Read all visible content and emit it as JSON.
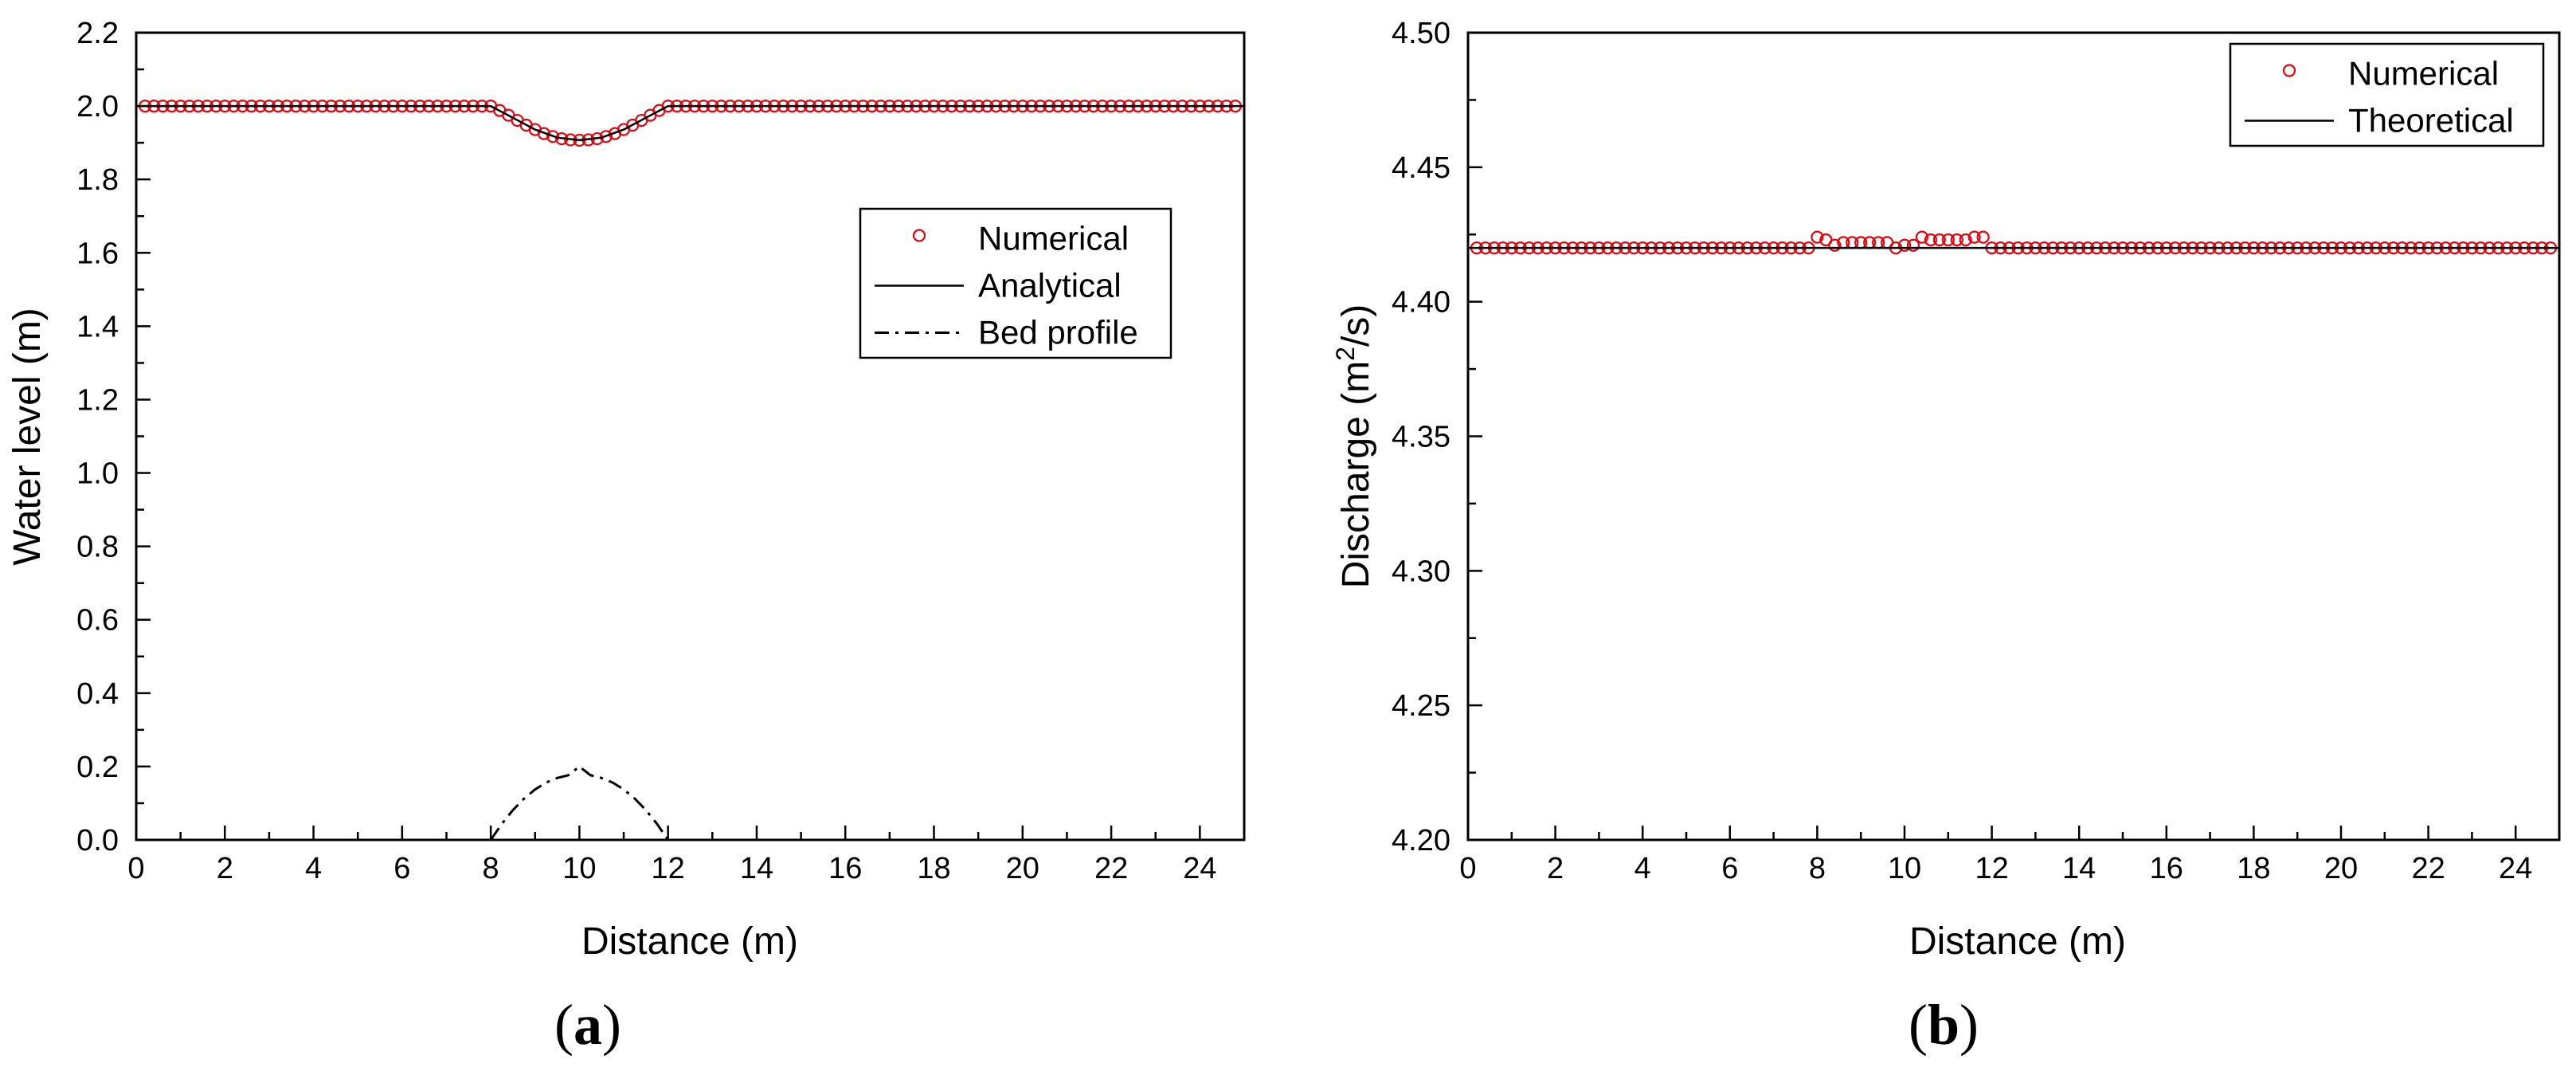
{
  "chart_data": [
    {
      "panel": "(a)",
      "panel_letter": "a",
      "type": "line",
      "xlabel": "Distance (m)",
      "ylabel": "Water level (m)",
      "xlim": [
        0,
        25
      ],
      "ylim": [
        0,
        2.2
      ],
      "xticks": [
        0,
        2,
        4,
        6,
        8,
        10,
        12,
        14,
        16,
        18,
        20,
        22,
        24
      ],
      "yticks": [
        0.0,
        0.2,
        0.4,
        0.6,
        0.8,
        1.0,
        1.2,
        1.4,
        1.6,
        1.8,
        2.0,
        2.2
      ],
      "ytick_labels": [
        "0.0",
        "0.2",
        "0.4",
        "0.6",
        "0.8",
        "1.0",
        "1.2",
        "1.4",
        "1.6",
        "1.8",
        "2.0",
        "2.2"
      ],
      "legend": {
        "position": "right",
        "entries": [
          "Numerical",
          "Analytical",
          "Bed profile"
        ]
      },
      "series": [
        {
          "name": "Numerical",
          "style": "red-circle-markers",
          "x": [
            0.2,
            0.4,
            0.6,
            0.8,
            1.0,
            1.2,
            1.4,
            1.6,
            1.8,
            2.0,
            2.2,
            2.4,
            2.6,
            2.8,
            3.0,
            3.2,
            3.4,
            3.6,
            3.8,
            4.0,
            4.2,
            4.4,
            4.6,
            4.8,
            5.0,
            5.2,
            5.4,
            5.6,
            5.8,
            6.0,
            6.2,
            6.4,
            6.6,
            6.8,
            7.0,
            7.2,
            7.4,
            7.6,
            7.8,
            8.0,
            8.2,
            8.4,
            8.6,
            8.8,
            9.0,
            9.2,
            9.4,
            9.6,
            9.8,
            10.0,
            10.2,
            10.4,
            10.6,
            10.8,
            11.0,
            11.2,
            11.4,
            11.6,
            11.8,
            12.0,
            12.2,
            12.4,
            12.6,
            12.8,
            13.0,
            13.2,
            13.4,
            13.6,
            13.8,
            14.0,
            14.2,
            14.4,
            14.6,
            14.8,
            15.0,
            15.2,
            15.4,
            15.6,
            15.8,
            16.0,
            16.2,
            16.4,
            16.6,
            16.8,
            17.0,
            17.2,
            17.4,
            17.6,
            17.8,
            18.0,
            18.2,
            18.4,
            18.6,
            18.8,
            19.0,
            19.2,
            19.4,
            19.6,
            19.8,
            20.0,
            20.2,
            20.4,
            20.6,
            20.8,
            21.0,
            21.2,
            21.4,
            21.6,
            21.8,
            22.0,
            22.2,
            22.4,
            22.6,
            22.8,
            23.0,
            23.2,
            23.4,
            23.6,
            23.8,
            24.0,
            24.2,
            24.4,
            24.6,
            24.8
          ],
          "y": [
            2.0,
            2.0,
            2.0,
            2.0,
            2.0,
            2.0,
            2.0,
            2.0,
            2.0,
            2.0,
            2.0,
            2.0,
            2.0,
            2.0,
            2.0,
            2.0,
            2.0,
            2.0,
            2.0,
            2.0,
            2.0,
            2.0,
            2.0,
            2.0,
            2.0,
            2.0,
            2.0,
            2.0,
            2.0,
            2.0,
            2.0,
            2.0,
            2.0,
            2.0,
            2.0,
            2.0,
            2.0,
            2.0,
            2.0,
            2.0,
            1.988,
            1.975,
            1.961,
            1.948,
            1.936,
            1.925,
            1.917,
            1.911,
            1.908,
            1.907,
            1.908,
            1.911,
            1.917,
            1.925,
            1.936,
            1.948,
            1.961,
            1.975,
            1.988,
            2.0,
            2.0,
            2.0,
            2.0,
            2.0,
            2.0,
            2.0,
            2.0,
            2.0,
            2.0,
            2.0,
            2.0,
            2.0,
            2.0,
            2.0,
            2.0,
            2.0,
            2.0,
            2.0,
            2.0,
            2.0,
            2.0,
            2.0,
            2.0,
            2.0,
            2.0,
            2.0,
            2.0,
            2.0,
            2.0,
            2.0,
            2.0,
            2.0,
            2.0,
            2.0,
            2.0,
            2.0,
            2.0,
            2.0,
            2.0,
            2.0,
            2.0,
            2.0,
            2.0,
            2.0,
            2.0,
            2.0,
            2.0,
            2.0,
            2.0,
            2.0,
            2.0,
            2.0,
            2.0,
            2.0,
            2.0,
            2.0,
            2.0,
            2.0,
            2.0,
            2.0,
            2.0,
            2.0,
            2.0,
            2.0
          ]
        },
        {
          "name": "Analytical",
          "style": "solid-black",
          "x": [
            0,
            8.0,
            8.5,
            9.0,
            9.5,
            10.0,
            10.5,
            11.0,
            11.5,
            12.0,
            25
          ],
          "y": [
            2.0,
            2.0,
            1.968,
            1.936,
            1.914,
            1.907,
            1.914,
            1.936,
            1.968,
            2.0,
            2.0
          ]
        },
        {
          "name": "Bed profile",
          "style": "dash-dot-black",
          "x": [
            8.0,
            8.25,
            8.5,
            8.75,
            9.0,
            9.25,
            9.5,
            9.75,
            10.0,
            10.25,
            10.5,
            10.75,
            11.0,
            11.25,
            11.5,
            11.75,
            12.0
          ],
          "y": [
            0.0,
            0.0438,
            0.0813,
            0.1125,
            0.1375,
            0.1563,
            0.1688,
            0.1763,
            0.2,
            0.1763,
            0.1688,
            0.1563,
            0.1375,
            0.1125,
            0.0813,
            0.0438,
            0.0
          ]
        }
      ]
    },
    {
      "panel": "(b)",
      "panel_letter": "b",
      "type": "line",
      "xlabel": "Distance (m)",
      "ylabel_prefix": "Discharge (m",
      "ylabel_sup": "2",
      "ylabel_suffix": "/s)",
      "xlim": [
        0,
        25
      ],
      "ylim": [
        4.2,
        4.5
      ],
      "xticks": [
        0,
        2,
        4,
        6,
        8,
        10,
        12,
        14,
        16,
        18,
        20,
        22,
        24
      ],
      "yticks": [
        4.2,
        4.25,
        4.3,
        4.35,
        4.4,
        4.45,
        4.5
      ],
      "ytick_labels": [
        "4.20",
        "4.25",
        "4.30",
        "4.35",
        "4.40",
        "4.45",
        "4.50"
      ],
      "legend": {
        "position": "top-right",
        "entries": [
          "Numerical",
          "Theoretical"
        ]
      },
      "series": [
        {
          "name": "Numerical",
          "style": "red-circle-markers",
          "x": [
            0.2,
            0.4,
            0.6,
            0.8,
            1.0,
            1.2,
            1.4,
            1.6,
            1.8,
            2.0,
            2.2,
            2.4,
            2.6,
            2.8,
            3.0,
            3.2,
            3.4,
            3.6,
            3.8,
            4.0,
            4.2,
            4.4,
            4.6,
            4.8,
            5.0,
            5.2,
            5.4,
            5.6,
            5.8,
            6.0,
            6.2,
            6.4,
            6.6,
            6.8,
            7.0,
            7.2,
            7.4,
            7.6,
            7.8,
            8.0,
            8.2,
            8.4,
            8.6,
            8.8,
            9.0,
            9.2,
            9.4,
            9.6,
            9.8,
            10.0,
            10.2,
            10.4,
            10.6,
            10.8,
            11.0,
            11.2,
            11.4,
            11.6,
            11.8,
            12.0,
            12.2,
            12.4,
            12.6,
            12.8,
            13.0,
            13.2,
            13.4,
            13.6,
            13.8,
            14.0,
            14.2,
            14.4,
            14.6,
            14.8,
            15.0,
            15.2,
            15.4,
            15.6,
            15.8,
            16.0,
            16.2,
            16.4,
            16.6,
            16.8,
            17.0,
            17.2,
            17.4,
            17.6,
            17.8,
            18.0,
            18.2,
            18.4,
            18.6,
            18.8,
            19.0,
            19.2,
            19.4,
            19.6,
            19.8,
            20.0,
            20.2,
            20.4,
            20.6,
            20.8,
            21.0,
            21.2,
            21.4,
            21.6,
            21.8,
            22.0,
            22.2,
            22.4,
            22.6,
            22.8,
            23.0,
            23.2,
            23.4,
            23.6,
            23.8,
            24.0,
            24.2,
            24.4,
            24.6,
            24.8
          ],
          "y": [
            4.42,
            4.42,
            4.42,
            4.42,
            4.42,
            4.42,
            4.42,
            4.42,
            4.42,
            4.42,
            4.42,
            4.42,
            4.42,
            4.42,
            4.42,
            4.42,
            4.42,
            4.42,
            4.42,
            4.42,
            4.42,
            4.42,
            4.42,
            4.42,
            4.42,
            4.42,
            4.42,
            4.42,
            4.42,
            4.42,
            4.42,
            4.42,
            4.42,
            4.42,
            4.42,
            4.42,
            4.42,
            4.42,
            4.42,
            4.424,
            4.423,
            4.421,
            4.422,
            4.422,
            4.422,
            4.422,
            4.422,
            4.422,
            4.42,
            4.421,
            4.421,
            4.424,
            4.423,
            4.423,
            4.423,
            4.423,
            4.423,
            4.424,
            4.424,
            4.42,
            4.42,
            4.42,
            4.42,
            4.42,
            4.42,
            4.42,
            4.42,
            4.42,
            4.42,
            4.42,
            4.42,
            4.42,
            4.42,
            4.42,
            4.42,
            4.42,
            4.42,
            4.42,
            4.42,
            4.42,
            4.42,
            4.42,
            4.42,
            4.42,
            4.42,
            4.42,
            4.42,
            4.42,
            4.42,
            4.42,
            4.42,
            4.42,
            4.42,
            4.42,
            4.42,
            4.42,
            4.42,
            4.42,
            4.42,
            4.42,
            4.42,
            4.42,
            4.42,
            4.42,
            4.42,
            4.42,
            4.42,
            4.42,
            4.42,
            4.42,
            4.42,
            4.42,
            4.42,
            4.42,
            4.42,
            4.42,
            4.42,
            4.42,
            4.42,
            4.42,
            4.42,
            4.42,
            4.42,
            4.42
          ]
        },
        {
          "name": "Theoretical",
          "style": "solid-black",
          "x": [
            0,
            25
          ],
          "y": [
            4.42,
            4.42
          ]
        }
      ]
    }
  ],
  "colors": {
    "numerical_marker": "#e8000b",
    "line": "#000000",
    "background": "#ffffff"
  }
}
